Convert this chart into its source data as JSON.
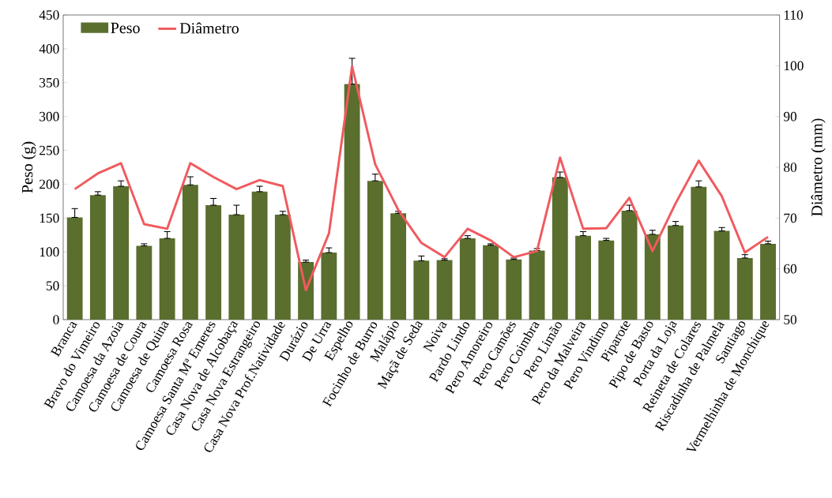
{
  "chart_data": {
    "type": "bar",
    "categories": [
      "Branca",
      "Bravo do Vimeiro",
      "Camoesa da Azoia",
      "Camoesa de Coura",
      "Camoesa de Quina",
      "Camoesa Rosa",
      "Camoesa Santa Mª Emeres",
      "Casa Nova de Alcobaça",
      "Casa Nova Estrangeiro",
      "Casa Nova Prof.Natividade",
      "Durázio",
      "De Urra",
      "Espelho",
      "Focinho de Burro",
      "Malápio",
      "Maçã de Seda",
      "Noiva",
      "Pardo Lindo",
      "Pero Amoreiro",
      "Pero Camões",
      "Pero Coimbra",
      "Pero Limão",
      "Pero da Malveira",
      "Pero Vindimo",
      "Piparote",
      "Pipo de Basto",
      "Porta da Loja",
      "Reineta de Colares",
      "Riscadinha de Palmela",
      "Santiago",
      "Vermelhinha de Monchique"
    ],
    "series": [
      {
        "name": "Peso",
        "color": "#5a6e2e",
        "values": [
          151,
          184,
          197,
          109,
          120,
          199,
          169,
          155,
          189,
          155,
          85,
          99,
          348,
          205,
          157,
          87,
          88,
          120,
          110,
          89,
          102,
          210,
          124,
          117,
          161,
          126,
          139,
          196,
          131,
          91,
          112
        ],
        "errors": [
          [
            151,
            164
          ],
          [
            184,
            189
          ],
          [
            197,
            205
          ],
          [
            109,
            112
          ],
          [
            120,
            130
          ],
          [
            199,
            211
          ],
          [
            169,
            179
          ],
          [
            155,
            169
          ],
          [
            189,
            197
          ],
          [
            155,
            160
          ],
          [
            85,
            88
          ],
          [
            99,
            106
          ],
          [
            348,
            386
          ],
          [
            205,
            215
          ],
          [
            157,
            160
          ],
          [
            87,
            94
          ],
          [
            88,
            90
          ],
          [
            120,
            124
          ],
          [
            110,
            112
          ],
          [
            89,
            91
          ],
          [
            102,
            105
          ],
          [
            210,
            218
          ],
          [
            124,
            130
          ],
          [
            117,
            120
          ],
          [
            161,
            169
          ],
          [
            126,
            132
          ],
          [
            139,
            145
          ],
          [
            196,
            205
          ],
          [
            131,
            136
          ],
          [
            91,
            96
          ],
          [
            112,
            116
          ]
        ]
      },
      {
        "name": "Diâmetro",
        "type": "line",
        "axis": "y2",
        "color": "#f05a5e",
        "values": [
          75.7,
          78.8,
          80.8,
          68.8,
          67.9,
          80.8,
          78.1,
          75.7,
          77.5,
          76.3,
          55.8,
          67,
          99.9,
          80.6,
          71.6,
          65.1,
          62.3,
          67.9,
          65.6,
          62.3,
          63.5,
          81.9,
          67.9,
          68,
          74,
          63.5,
          72.9,
          81.3,
          74.3,
          63.2,
          66.3
        ]
      }
    ],
    "ylabel": "Peso (g)",
    "y2label": "Diâmetro (mm)",
    "ylim": [
      0,
      450
    ],
    "yticks": [
      0,
      50,
      100,
      150,
      200,
      250,
      300,
      350,
      400,
      450
    ],
    "y2lim": [
      50,
      110
    ],
    "y2ticks": [
      50,
      60,
      70,
      80,
      90,
      100,
      110
    ],
    "legend": "top left"
  }
}
